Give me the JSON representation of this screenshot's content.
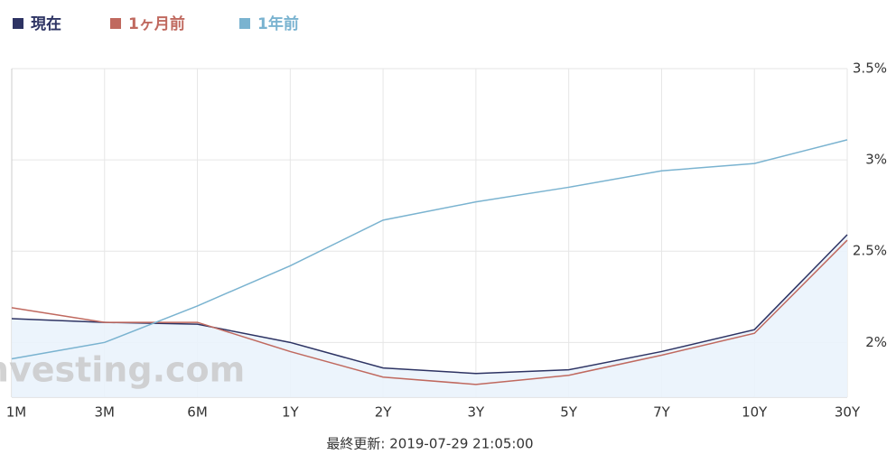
{
  "chart_data": {
    "type": "line",
    "categories": [
      "1M",
      "3M",
      "6M",
      "1Y",
      "2Y",
      "3Y",
      "5Y",
      "7Y",
      "10Y",
      "30Y"
    ],
    "series": [
      {
        "name": "現在",
        "color": "#2d3363",
        "values": [
          2.13,
          2.11,
          2.1,
          2.0,
          1.86,
          1.83,
          1.85,
          1.95,
          2.07,
          2.59
        ],
        "area": true
      },
      {
        "name": "1ヶ月前",
        "color": "#c0695f",
        "values": [
          2.19,
          2.11,
          2.11,
          1.95,
          1.81,
          1.77,
          1.82,
          1.93,
          2.05,
          2.56
        ]
      },
      {
        "name": "1年前",
        "color": "#7ab3d0",
        "values": [
          1.91,
          2.0,
          2.2,
          2.42,
          2.67,
          2.77,
          2.85,
          2.94,
          2.98,
          3.11
        ]
      }
    ],
    "ylim": [
      1.7,
      3.5
    ],
    "yticks": [
      {
        "value": 2,
        "label": "2%"
      },
      {
        "value": 2.5,
        "label": "2.5%"
      },
      {
        "value": 3,
        "label": "3%"
      },
      {
        "value": 3.5,
        "label": "3.5%"
      }
    ],
    "grid": true,
    "watermark": "Investing.com",
    "footer": "最終更新: 2019-07-29 21:05:00"
  }
}
